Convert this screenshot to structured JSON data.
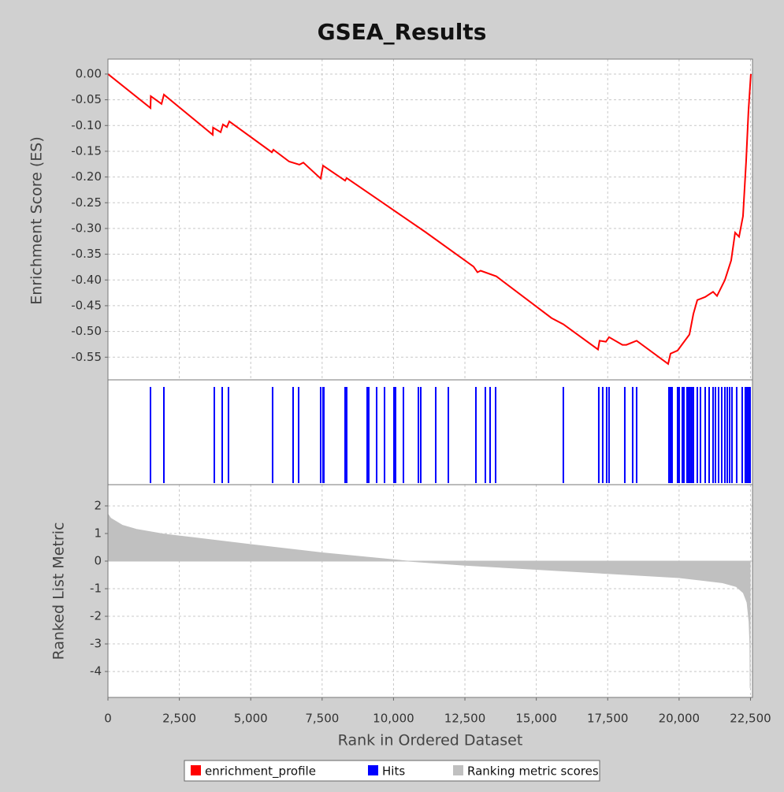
{
  "chart_data": [
    {
      "type": "line",
      "title": "GSEA_Results",
      "ylabel": "Enrichment Score (ES)",
      "xlim": [
        0,
        22570
      ],
      "ylim": [
        -0.594,
        0.029
      ],
      "grid": true,
      "yticks": [
        {
          "value": 0,
          "label": "0.00"
        },
        {
          "value": -0.05,
          "label": "-0.05"
        },
        {
          "value": -0.1,
          "label": "-0.10"
        },
        {
          "value": -0.15,
          "label": "-0.15"
        },
        {
          "value": -0.2,
          "label": "-0.20"
        },
        {
          "value": -0.25,
          "label": "-0.25"
        },
        {
          "value": -0.3,
          "label": "-0.30"
        },
        {
          "value": -0.35,
          "label": "-0.35"
        },
        {
          "value": -0.4,
          "label": "-0.40"
        },
        {
          "value": -0.45,
          "label": "-0.45"
        },
        {
          "value": -0.5,
          "label": "-0.50"
        },
        {
          "value": -0.55,
          "label": "-0.55"
        }
      ],
      "series": [
        {
          "name": "enrichment_profile",
          "color": "#ff0000",
          "x": [
            0,
            1490,
            1500,
            1876,
            1960,
            3670,
            3680,
            3946,
            4028,
            4166,
            4249,
            5739,
            5794,
            6346,
            6704,
            6842,
            7449,
            7532,
            8305,
            8360,
            9464,
            11119,
            12802,
            12940,
            13050,
            13602,
            15534,
            15947,
            17161,
            17216,
            17437,
            17547,
            18016,
            18154,
            18513,
            19617,
            19700,
            19948,
            20362,
            20500,
            20638,
            20914,
            21190,
            21328,
            21604,
            21824,
            21962,
            22100,
            22238,
            22348,
            22430,
            22513
          ],
          "values": [
            0,
            -0.066,
            -0.043,
            -0.058,
            -0.04,
            -0.118,
            -0.104,
            -0.113,
            -0.098,
            -0.103,
            -0.092,
            -0.152,
            -0.147,
            -0.17,
            -0.176,
            -0.172,
            -0.203,
            -0.178,
            -0.207,
            -0.202,
            -0.244,
            -0.307,
            -0.374,
            -0.385,
            -0.382,
            -0.393,
            -0.474,
            -0.486,
            -0.535,
            -0.518,
            -0.52,
            -0.511,
            -0.526,
            -0.526,
            -0.518,
            -0.563,
            -0.543,
            -0.537,
            -0.506,
            -0.466,
            -0.439,
            -0.433,
            -0.423,
            -0.431,
            -0.4,
            -0.362,
            -0.308,
            -0.316,
            -0.276,
            -0.169,
            -0.071,
            0
          ]
        }
      ]
    },
    {
      "type": "event",
      "xlim": [
        0,
        22570
      ],
      "series": [
        {
          "name": "Hits",
          "color": "#0000ff",
          "x": [
            1490,
            1959,
            3725,
            4001,
            4221,
            5766,
            6484,
            6677,
            7449,
            7532,
            7560,
            8305,
            8360,
            9078,
            9133,
            9409,
            9685,
            10016,
            10071,
            10347,
            10871,
            10954,
            11478,
            11920,
            12885,
            13216,
            13382,
            13575,
            15947,
            17188,
            17326,
            17464,
            17547,
            18099,
            18375,
            18513,
            19644,
            19700,
            19755,
            19948,
            20003,
            20114,
            20169,
            20279,
            20334,
            20389,
            20444,
            20500,
            20638,
            20748,
            20914,
            21052,
            21190,
            21272,
            21383,
            21493,
            21604,
            21686,
            21769,
            21851,
            22017,
            22210,
            22320,
            22376,
            22431,
            22486
          ]
        }
      ]
    },
    {
      "type": "area",
      "xlabel": "Rank in Ordered Dataset",
      "ylabel": "Ranked List Metric",
      "xlim": [
        0,
        22570
      ],
      "ylim": [
        -4.94,
        2.77
      ],
      "grid": true,
      "xticks": [
        0,
        {
          "value": 2500,
          "label": "2,500"
        },
        {
          "value": 5000,
          "label": "5,000"
        },
        {
          "value": 7500,
          "label": "7,500"
        },
        {
          "value": 10000,
          "label": "10,000"
        },
        {
          "value": 12500,
          "label": "12,500"
        },
        {
          "value": 15000,
          "label": "15,000"
        },
        {
          "value": 17500,
          "label": "17,500"
        },
        {
          "value": 20000,
          "label": "20,000"
        },
        {
          "value": 22500,
          "label": "22,500"
        }
      ],
      "yticks": [
        2,
        1,
        0,
        -1,
        -2,
        -3,
        -4
      ],
      "series": [
        {
          "name": "Ranking metric scores",
          "color": "#c0c0c0",
          "x": [
            0,
            100,
            500,
            1000,
            2000,
            3000,
            5000,
            7500,
            9000,
            10000,
            10500,
            12500,
            15000,
            17500,
            20000,
            21500,
            22000,
            22250,
            22380,
            22450,
            22480,
            22490
          ],
          "values": [
            1.7,
            1.55,
            1.3,
            1.15,
            0.97,
            0.85,
            0.6,
            0.3,
            0.15,
            0.05,
            0,
            -0.15,
            -0.3,
            -0.45,
            -0.6,
            -0.78,
            -0.92,
            -1.15,
            -1.5,
            -2.2,
            -3.0,
            -4.6
          ]
        }
      ]
    }
  ]
}
